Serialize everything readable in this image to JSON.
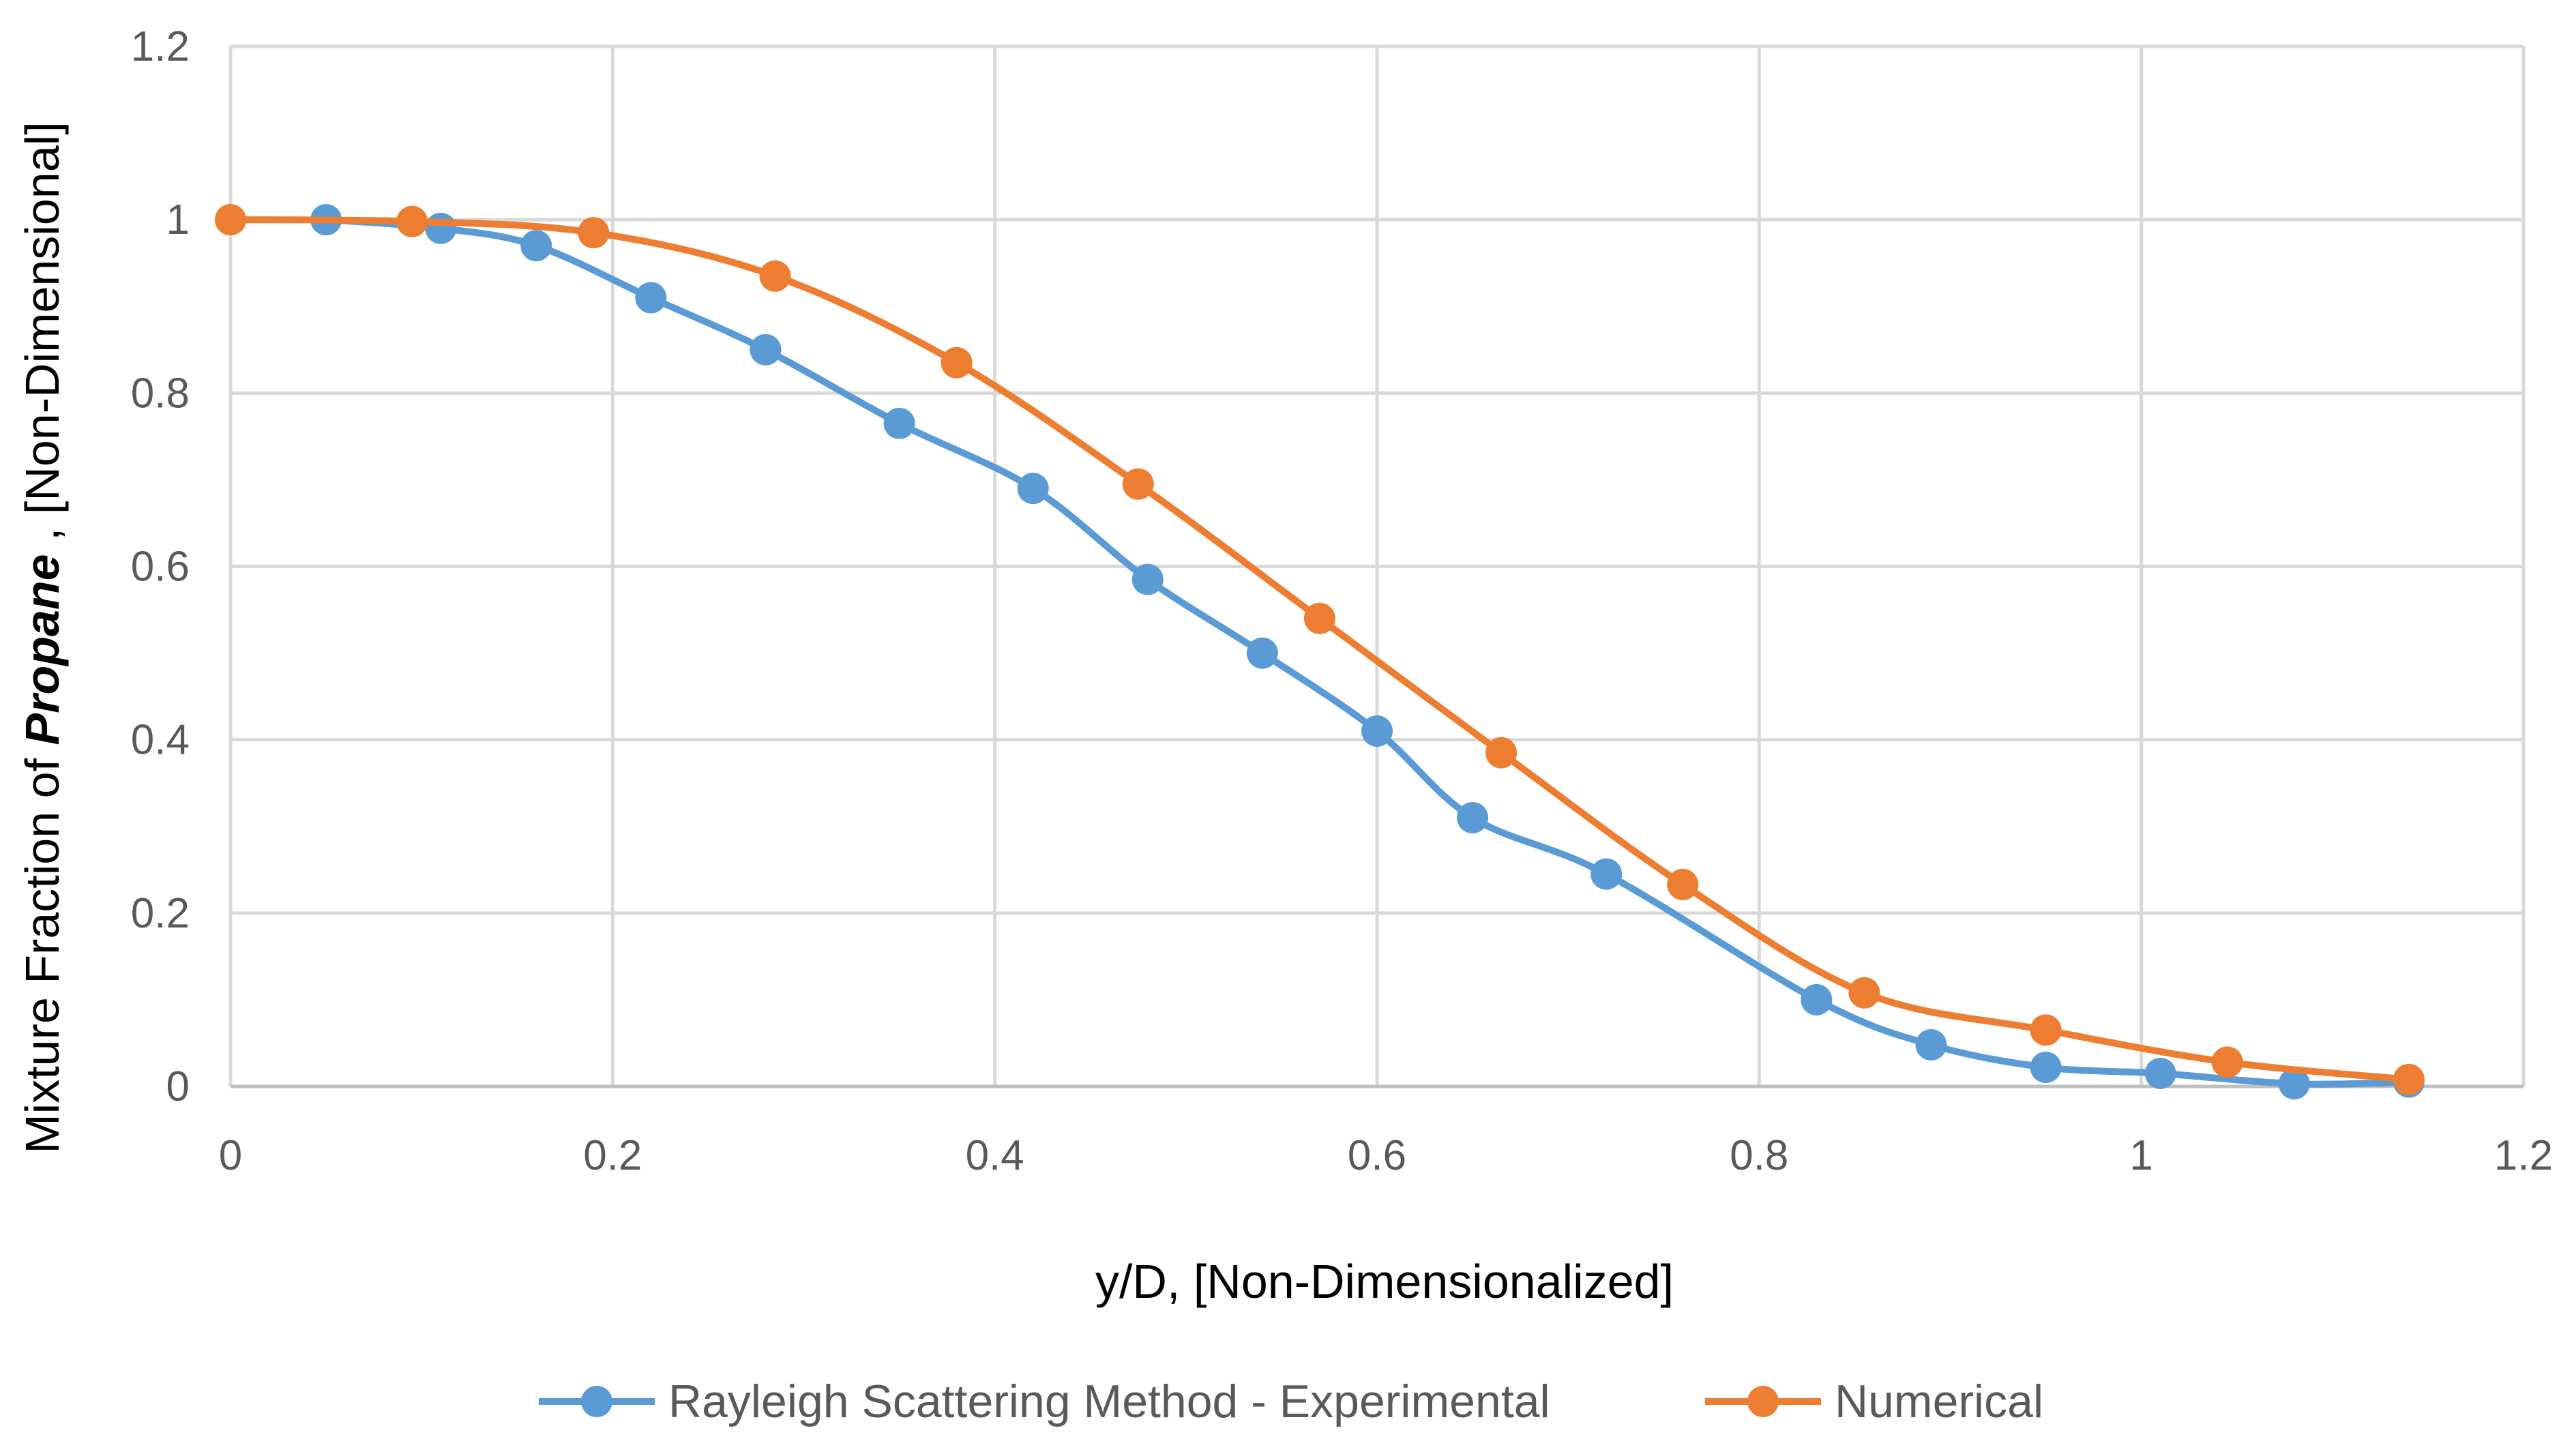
{
  "chart_data": {
    "type": "line",
    "title": "",
    "xlabel": "y/D, [Non-Dimensionalized]",
    "ylabel": {
      "prefix": "Mixture Fraction of ",
      "emphasis": "Propane",
      "suffix": ", [Non-Dimensional]"
    },
    "xlim": [
      0,
      1.2
    ],
    "ylim": [
      0,
      1.2
    ],
    "xticks": [
      0,
      0.2,
      0.4,
      0.6,
      0.8,
      1,
      1.2
    ],
    "yticks": [
      0,
      0.2,
      0.4,
      0.6,
      0.8,
      1,
      1.2
    ],
    "xtick_labels": [
      "0",
      "0.2",
      "0.4",
      "0.6",
      "0.8",
      "1",
      "1.2"
    ],
    "ytick_labels": [
      "0",
      "0.2",
      "0.4",
      "0.6",
      "0.8",
      "1",
      "1.2"
    ],
    "grid": true,
    "legend_position": "bottom",
    "series": [
      {
        "name": "Rayleigh Scattering Method - Experimental",
        "color": "#5b9bd5",
        "x": [
          0.05,
          0.11,
          0.16,
          0.22,
          0.28,
          0.35,
          0.42,
          0.48,
          0.54,
          0.6,
          0.65,
          0.72,
          0.83,
          0.89,
          0.95,
          1.01,
          1.08,
          1.14
        ],
        "y": [
          1.0,
          0.99,
          0.97,
          0.91,
          0.85,
          0.765,
          0.69,
          0.585,
          0.5,
          0.41,
          0.31,
          0.245,
          0.1,
          0.048,
          0.022,
          0.015,
          0.003,
          0.005
        ]
      },
      {
        "name": "Numerical",
        "color": "#ed7d31",
        "x": [
          0,
          0.095,
          0.19,
          0.285,
          0.38,
          0.475,
          0.57,
          0.665,
          0.76,
          0.855,
          0.95,
          1.045,
          1.14
        ],
        "y": [
          1.0,
          0.998,
          0.985,
          0.935,
          0.835,
          0.695,
          0.54,
          0.385,
          0.233,
          0.108,
          0.065,
          0.028,
          0.008
        ]
      }
    ]
  }
}
